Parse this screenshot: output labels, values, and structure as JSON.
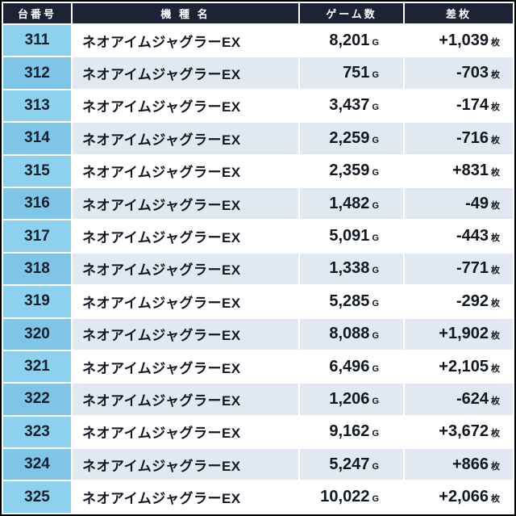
{
  "colors": {
    "header_bg": "#1c2334",
    "header_text": "#ffffff",
    "number_col_bg": "#8ed1ee",
    "number_col_bg_alt": "#7fc5e8",
    "row_alt_bg": "#e2e8f1",
    "frame": "#000000",
    "text": "#111722"
  },
  "chart_data": {
    "type": "table",
    "title": "",
    "columns": [
      "台番号",
      "機 種 名",
      "ゲーム数",
      "差枚"
    ],
    "units": {
      "games": "G",
      "diff": "枚"
    },
    "rows": [
      {
        "no": "311",
        "name": "ネオアイムジャグラーEX",
        "games": "8,201",
        "diff": "+1,039"
      },
      {
        "no": "312",
        "name": "ネオアイムジャグラーEX",
        "games": "751",
        "diff": "-703"
      },
      {
        "no": "313",
        "name": "ネオアイムジャグラーEX",
        "games": "3,437",
        "diff": "-174"
      },
      {
        "no": "314",
        "name": "ネオアイムジャグラーEX",
        "games": "2,259",
        "diff": "-716"
      },
      {
        "no": "315",
        "name": "ネオアイムジャグラーEX",
        "games": "2,359",
        "diff": "+831"
      },
      {
        "no": "316",
        "name": "ネオアイムジャグラーEX",
        "games": "1,482",
        "diff": "-49"
      },
      {
        "no": "317",
        "name": "ネオアイムジャグラーEX",
        "games": "5,091",
        "diff": "-443"
      },
      {
        "no": "318",
        "name": "ネオアイムジャグラーEX",
        "games": "1,338",
        "diff": "-771"
      },
      {
        "no": "319",
        "name": "ネオアイムジャグラーEX",
        "games": "5,285",
        "diff": "-292"
      },
      {
        "no": "320",
        "name": "ネオアイムジャグラーEX",
        "games": "8,088",
        "diff": "+1,902"
      },
      {
        "no": "321",
        "name": "ネオアイムジャグラーEX",
        "games": "6,496",
        "diff": "+2,105"
      },
      {
        "no": "322",
        "name": "ネオアイムジャグラーEX",
        "games": "1,206",
        "diff": "-624"
      },
      {
        "no": "323",
        "name": "ネオアイムジャグラーEX",
        "games": "9,162",
        "diff": "+3,672"
      },
      {
        "no": "324",
        "name": "ネオアイムジャグラーEX",
        "games": "5,247",
        "diff": "+866"
      },
      {
        "no": "325",
        "name": "ネオアイムジャグラーEX",
        "games": "10,022",
        "diff": "+2,066"
      }
    ]
  }
}
